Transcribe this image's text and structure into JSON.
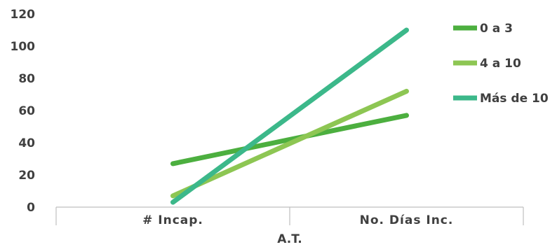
{
  "chart_data": {
    "type": "line",
    "title": "",
    "xlabel": "A.T.",
    "ylabel": "",
    "categories": [
      "# Incap.",
      "No. Días Inc."
    ],
    "ylim": [
      0,
      120
    ],
    "yticks": [
      "0",
      "20",
      "40",
      "60",
      "80",
      "100",
      "120"
    ],
    "grid": false,
    "legend_position": "right",
    "series": [
      {
        "name": "0 a 3",
        "values": [
          27,
          57
        ],
        "color": "#4caf3f"
      },
      {
        "name": "4 a 10",
        "values": [
          7,
          72
        ],
        "color": "#8dc653"
      },
      {
        "name": "Más de 10",
        "values": [
          3,
          110
        ],
        "color": "#3cb88a"
      }
    ]
  }
}
